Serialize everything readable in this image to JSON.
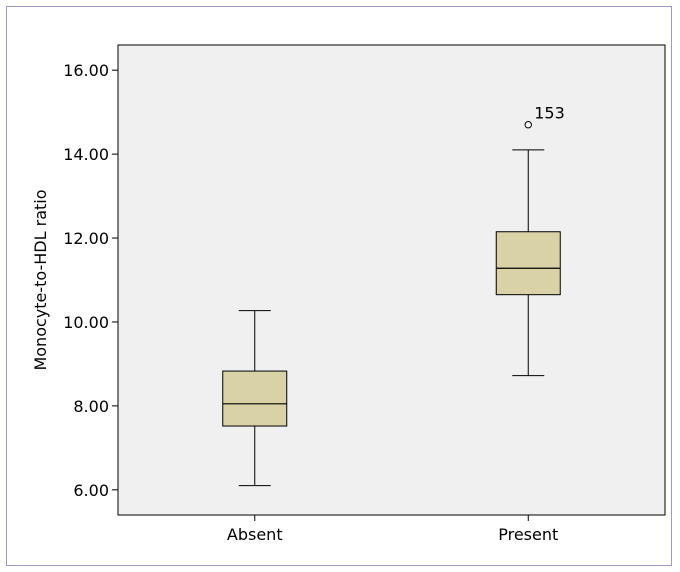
{
  "chart_data": {
    "type": "boxplot",
    "title": "",
    "xlabel": "",
    "ylabel": "Monocyte-to-HDL ratio",
    "ylim": [
      5.4,
      16.6
    ],
    "yticks": [
      "6.00",
      "8.00",
      "10.00",
      "12.00",
      "14.00",
      "16.00"
    ],
    "ytick_values": [
      6,
      8,
      10,
      12,
      14,
      16
    ],
    "categories": [
      "Absent",
      "Present"
    ],
    "boxes": [
      {
        "category": "Absent",
        "whisker_low": 6.1,
        "q1": 7.52,
        "median": 8.05,
        "q3": 8.83,
        "whisker_high": 10.27,
        "outliers": []
      },
      {
        "category": "Present",
        "whisker_low": 8.72,
        "q1": 10.65,
        "median": 11.28,
        "q3": 12.15,
        "whisker_high": 14.1,
        "outliers": [
          {
            "value": 14.7,
            "label": "153"
          }
        ]
      }
    ],
    "colors": {
      "box_fill": "#d8d2a6",
      "plot_bg": "#f0f0f0",
      "frame": "#9a9ac4"
    },
    "grid": false,
    "legend": "none"
  }
}
